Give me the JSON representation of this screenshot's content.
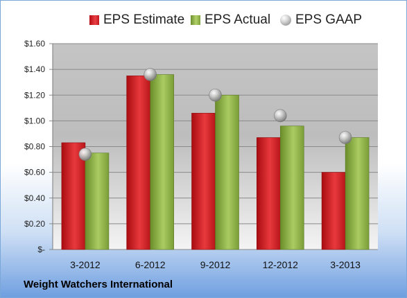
{
  "chart_data": {
    "type": "bar",
    "categories": [
      "3-2012",
      "6-2012",
      "9-2012",
      "12-2012",
      "3-2013"
    ],
    "series": [
      {
        "name": "EPS Estimate",
        "kind": "bar",
        "values": [
          0.83,
          1.35,
          1.06,
          0.87,
          0.6
        ]
      },
      {
        "name": "EPS Actual",
        "kind": "bar",
        "values": [
          0.75,
          1.36,
          1.2,
          0.96,
          0.87
        ]
      },
      {
        "name": "EPS GAAP",
        "kind": "marker",
        "values": [
          0.74,
          1.36,
          1.2,
          1.04,
          0.87
        ]
      }
    ],
    "ylim": [
      0,
      1.6
    ],
    "yticks": [
      0,
      0.2,
      0.4,
      0.6,
      0.8,
      1.0,
      1.2,
      1.4,
      1.6
    ],
    "ytick_labels": [
      "$-",
      "$0.20",
      "$0.40",
      "$0.60",
      "$0.80",
      "$1.00",
      "$1.20",
      "$1.40",
      "$1.60"
    ],
    "grid": true,
    "legend_position": "top",
    "colors": {
      "estimate": "#d42a2e",
      "actual": "#9bbb59",
      "gaap": "#b0b0b0"
    }
  },
  "footer": {
    "company": "Weight Watchers International"
  },
  "legend": {
    "estimate": "EPS Estimate",
    "actual": "EPS Actual",
    "gaap": "EPS GAAP"
  }
}
